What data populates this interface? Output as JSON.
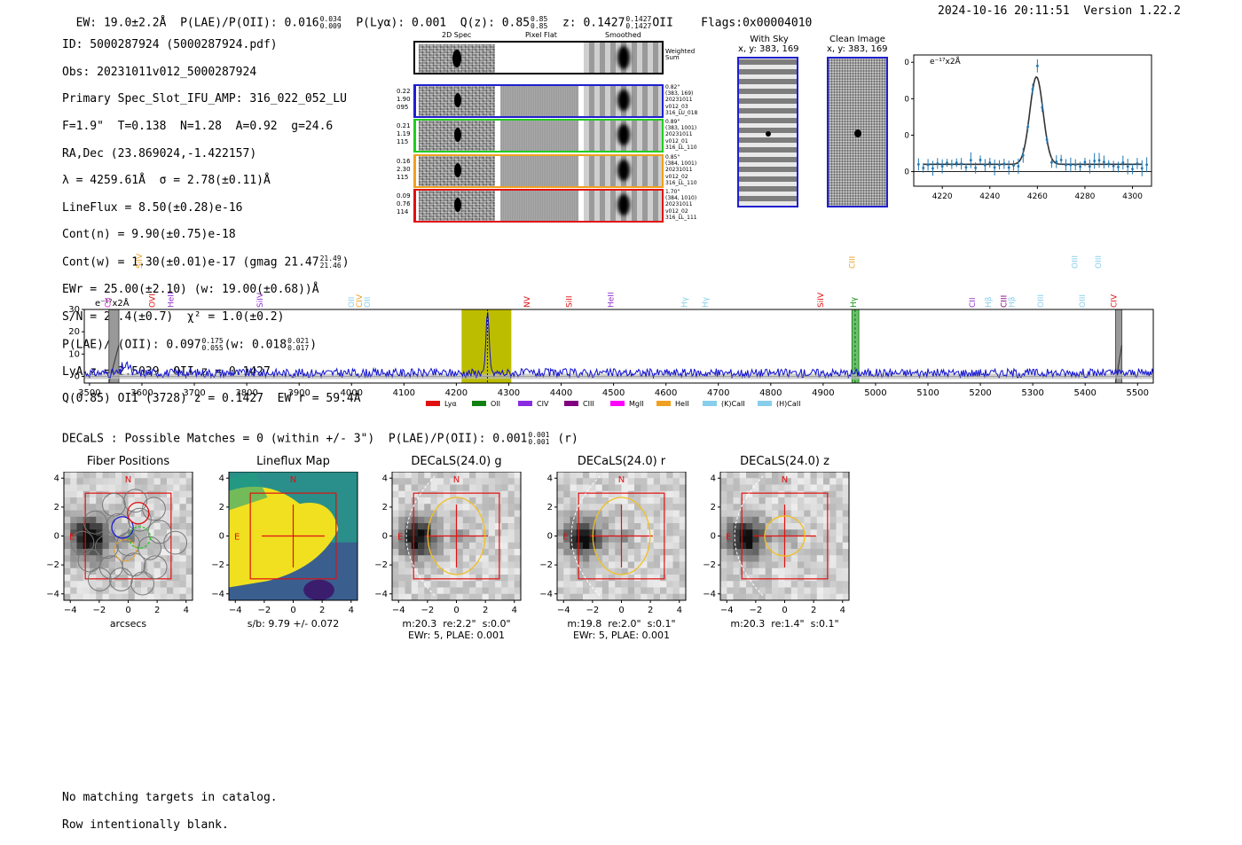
{
  "header": {
    "ew": "EW: 19.0±2.2Å",
    "plae_prefix": "P(LAE)/P(OII): 0.016",
    "plae_hi": "0.034",
    "plae_lo": "0.009",
    "plya": "P(Lyα): 0.001",
    "qz_prefix": "Q(z): 0.85",
    "qz_hi": "0.85",
    "qz_lo": "0.85",
    "z_prefix": "z: 0.1427",
    "z_hi": "0.1427",
    "z_lo": "0.1427",
    "z_line": "OII",
    "flags": "Flags:0x00004010",
    "datetime": "2024-10-16 20:11:51",
    "version": "Version 1.22.2"
  },
  "info": {
    "l1": "ID: 5000287924 (5000287924.pdf)",
    "l2": "Obs: 20231011v012_5000287924",
    "l3": "Primary Spec_Slot_IFU_AMP: 316_022_052_LU",
    "l4": "F=1.9\"  T=0.138  N=1.28  A=0.92  g=24.6",
    "l5": "RA,Dec (23.869024,-1.422157)",
    "l6": "λ = 4259.61Å  σ = 2.78(±0.11)Å",
    "l7": "LineFlux = 8.50(±0.28)e-16",
    "l8": "Cont(n) = 9.90(±0.75)e-18",
    "l9_prefix": "Cont(w) = 1.30(±0.01)e-17 (gmag 21.47",
    "l9_hi": "21.49",
    "l9_lo": "21.46",
    "l9_suffix": ")",
    "l10": "EWr = 25.00(±2.10) (w: 19.00(±0.68))Å",
    "l11": "S/N = 28.4(±0.7)  χ² = 1.0(±0.2)",
    "l12_prefix": "P(LAE)/P(OII): 0.097",
    "l12_hi": "0.175",
    "l12_lo": "0.055",
    "l12_mid": "(w: 0.018",
    "l12_hi2": "0.021",
    "l12_lo2": "0.017",
    "l12_suffix": ")",
    "l13": "LyA z = 2.5039  OII z = 0.1427",
    "l14": "Q(0.85) OII (3728) z = 0.1427  EW r = 59.4Å"
  },
  "cutouts": {
    "col_2d": "2D Spec",
    "col_flat": "Pixel Flat",
    "col_smooth": "Smoothed",
    "weighted_label": "Weighted\nSum",
    "rows": [
      {
        "left": "0.22\n1.90\n095",
        "right": "0.82\"\n(383, 169)\n20231011\nv012_03\n316_LU_018",
        "color": "#1f1fd0"
      },
      {
        "left": "0.21\n1.19\n115",
        "right": "0.89\"\n(383, 1001)\n20231011\nv012_01\n316_LL_110",
        "color": "#22cc22"
      },
      {
        "left": "0.16\n2.30\n115",
        "right": "0.85\"\n(384, 1001)\n20231011\nv012_02\n316_LL_110",
        "color": "#f0a020"
      },
      {
        "left": "0.09\n0.76\n114",
        "right": "1.70\"\n(384, 1010)\n20231011\nv012_02\n316_LL_111",
        "color": "#e01010"
      }
    ]
  },
  "sky": {
    "with_sky_title": "With Sky",
    "with_sky_xy": "x, y: 383, 169",
    "clean_title": "Clean Image",
    "clean_xy": "x, y: 383, 169"
  },
  "zoom_chart": {
    "ylabel": "e⁻¹⁷x2Å",
    "xticks": [
      "4220",
      "4240",
      "4260",
      "4280",
      "4300"
    ],
    "yticks": [
      "30",
      "20",
      "10",
      "0"
    ]
  },
  "chart_data": {
    "type": "line",
    "title": "Full spectrum",
    "ylabel": "e⁻¹⁷x2Å",
    "xlim": [
      3490,
      5530
    ],
    "ylim": [
      -3,
      30
    ],
    "xticks": [
      "3500",
      "3600",
      "3700",
      "3800",
      "3900",
      "4000",
      "4100",
      "4200",
      "4300",
      "4400",
      "4500",
      "4600",
      "4700",
      "4800",
      "4900",
      "5000",
      "5100",
      "5200",
      "5300",
      "5400",
      "5500"
    ],
    "yticks": [
      "30",
      "20",
      "10",
      "0"
    ],
    "highlight_range": [
      4210,
      4305
    ],
    "peak": {
      "x": 4259.6,
      "y": 29
    },
    "line_labels": [
      {
        "name": "CII",
        "x": 3540,
        "color": "#e020e0",
        "row": "low"
      },
      {
        "name": "SiIV",
        "x": 3600,
        "color": "#f0a020",
        "row": "high"
      },
      {
        "name": "OVI",
        "x": 3625,
        "color": "#e01010",
        "row": "low"
      },
      {
        "name": "HeII",
        "x": 3660,
        "color": "#9030d0",
        "row": "low"
      },
      {
        "name": "SiIV",
        "x": 3830,
        "color": "#9030d0",
        "row": "low"
      },
      {
        "name": "OII",
        "x": 4005,
        "color": "#87ceeb",
        "row": "low"
      },
      {
        "name": "CIV",
        "x": 4020,
        "color": "#f0a020",
        "row": "low"
      },
      {
        "name": "OII",
        "x": 4035,
        "color": "#87ceeb",
        "row": "low"
      },
      {
        "name": "NV",
        "x": 4340,
        "color": "#e01010",
        "row": "low"
      },
      {
        "name": "SiII",
        "x": 4420,
        "color": "#e01010",
        "row": "low"
      },
      {
        "name": "HeII",
        "x": 4500,
        "color": "#9030d0",
        "row": "low"
      },
      {
        "name": "Hγ",
        "x": 4640,
        "color": "#87ceeb",
        "row": "low"
      },
      {
        "name": "Hγ",
        "x": 4680,
        "color": "#87ceeb",
        "row": "low"
      },
      {
        "name": "SiIV",
        "x": 4900,
        "color": "#e01010",
        "row": "low"
      },
      {
        "name": "CIII",
        "x": 4960,
        "color": "#f0a020",
        "row": "high"
      },
      {
        "name": "Hγ",
        "x": 4963,
        "color": "#109010",
        "row": "low"
      },
      {
        "name": "CII",
        "x": 5190,
        "color": "#9030d0",
        "row": "low"
      },
      {
        "name": "Hβ",
        "x": 5220,
        "color": "#87ceeb",
        "row": "low"
      },
      {
        "name": "CIII",
        "x": 5250,
        "color": "#800080",
        "row": "low"
      },
      {
        "name": "Hβ",
        "x": 5265,
        "color": "#87ceeb",
        "row": "low"
      },
      {
        "name": "OIII",
        "x": 5320,
        "color": "#87ceeb",
        "row": "low"
      },
      {
        "name": "OIII",
        "x": 5385,
        "color": "#87ceeb",
        "row": "high"
      },
      {
        "name": "OIII",
        "x": 5400,
        "color": "#87ceeb",
        "row": "low"
      },
      {
        "name": "OIII",
        "x": 5430,
        "color": "#87ceeb",
        "row": "high"
      },
      {
        "name": "CIV",
        "x": 5460,
        "color": "#e01010",
        "row": "low"
      }
    ],
    "legend": [
      {
        "name": "Lyα",
        "color": "#e01010"
      },
      {
        "name": "OII",
        "color": "#108010"
      },
      {
        "name": "CIV",
        "color": "#8a2be2"
      },
      {
        "name": "CIII",
        "color": "#800080"
      },
      {
        "name": "MgII",
        "color": "#ff00ff"
      },
      {
        "name": "HeII",
        "color": "#f0a020"
      },
      {
        "name": "(K)CaII",
        "color": "#87ceeb"
      },
      {
        "name": "(H)CaII",
        "color": "#87ceeb"
      }
    ]
  },
  "decals": {
    "line_prefix": "DECaLS : Possible Matches = 0 (within +/- 3\")  P(LAE)/P(OII): 0.001",
    "line_hi": "0.001",
    "line_lo": "0.001",
    "line_suffix": "(r)",
    "north": "N",
    "east": "E",
    "axis_ticks_x": [
      "−4",
      "−2",
      "0",
      "2",
      "4"
    ],
    "axis_ticks_y": [
      "4",
      "2",
      "0",
      "−2",
      "−4"
    ],
    "panels": [
      {
        "title": "Fiber Positions",
        "cap1": "arcsecs",
        "cap2": ""
      },
      {
        "title": "Lineflux Map",
        "cap1": "s/b: 9.79 +/- 0.072",
        "cap2": ""
      },
      {
        "title": "DECaLS(24.0) g",
        "cap1": "m:20.3  re:2.2\"  s:0.0\"",
        "cap2": "EWr: 5, PLAE: 0.001"
      },
      {
        "title": "DECaLS(24.0) r",
        "cap1": "m:19.8  re:2.0\"  s:0.1\"",
        "cap2": "EWr: 5, PLAE: 0.001"
      },
      {
        "title": "DECaLS(24.0) z",
        "cap1": "m:20.3  re:1.4\"  s:0.1\"",
        "cap2": ""
      }
    ]
  },
  "footer": {
    "l1": "No matching targets in catalog.",
    "l2": "Row intentionally blank."
  }
}
